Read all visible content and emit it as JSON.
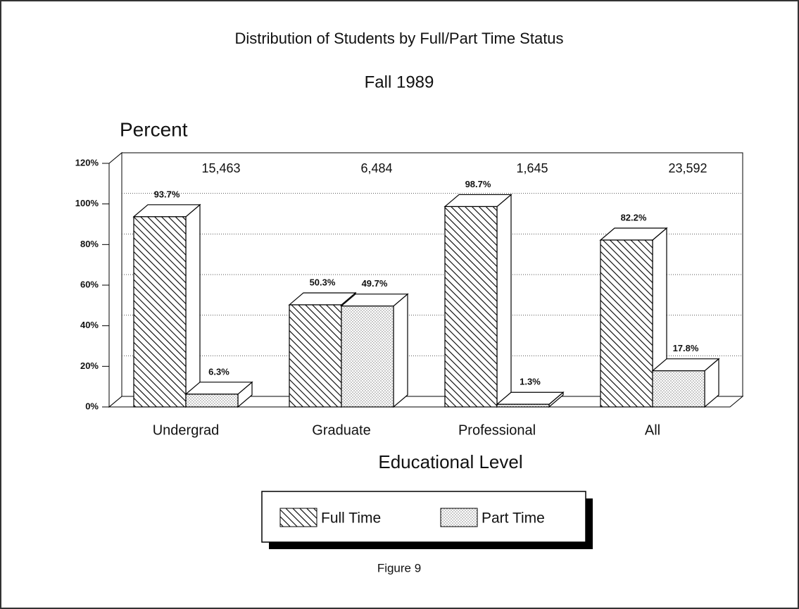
{
  "chart_data": {
    "type": "bar3d",
    "title": "Distribution of Students by Full/Part Time Status",
    "subtitle": "Fall 1989",
    "ylabel": "Percent",
    "xlabel": "Educational Level",
    "footer": "Figure 9",
    "categories": [
      "Undergrad",
      "Graduate",
      "Professional",
      "All"
    ],
    "annotations": [
      "15,463",
      "6,484",
      "1,645",
      "23,592"
    ],
    "series": [
      {
        "name": "Full Time",
        "color": "#000000",
        "pattern": "hatch",
        "values": [
          93.7,
          50.3,
          98.7,
          82.2
        ],
        "value_labels": [
          "93.7%",
          "50.3%",
          "98.7%",
          "82.2%"
        ]
      },
      {
        "name": "Part Time",
        "color": "#888888",
        "pattern": "dots",
        "values": [
          6.3,
          49.7,
          1.3,
          17.8
        ],
        "value_labels": [
          "6.3%",
          "49.7%",
          "1.3%",
          "17.8%"
        ]
      }
    ],
    "ylim": [
      0,
      120
    ],
    "yticks": [
      {
        "value": 0,
        "label": "0%"
      },
      {
        "value": 20,
        "label": "20%"
      },
      {
        "value": 40,
        "label": "40%"
      },
      {
        "value": 60,
        "label": "60%"
      },
      {
        "value": 80,
        "label": "80%"
      },
      {
        "value": 100,
        "label": "100%"
      },
      {
        "value": 120,
        "label": "120%"
      }
    ],
    "grid": true
  }
}
